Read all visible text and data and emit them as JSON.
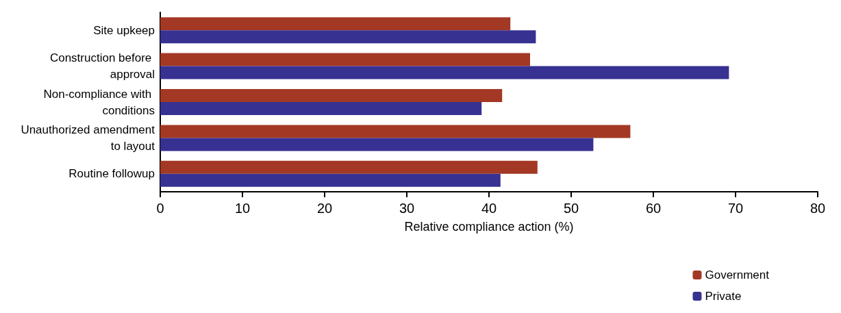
{
  "chart_data": {
    "type": "bar",
    "orientation": "horizontal",
    "xlabel": "Relative compliance action (%)",
    "categories": [
      "Site upkeep",
      "Construction before approval",
      "Non-compliance with conditions",
      "Unauthorized amendment to layout",
      "Routine followup"
    ],
    "series": [
      {
        "name": "Government",
        "color": "#a33824",
        "values": [
          42.6,
          45.0,
          41.6,
          57.2,
          45.9
        ]
      },
      {
        "name": "Private",
        "color": "#373191",
        "values": [
          45.7,
          69.2,
          39.1,
          52.7,
          41.4
        ]
      }
    ],
    "xlim": [
      0,
      80
    ],
    "xticks": [
      0,
      10,
      20,
      30,
      40,
      50,
      60,
      70,
      80
    ],
    "grid": false,
    "legend": "bottom right"
  }
}
